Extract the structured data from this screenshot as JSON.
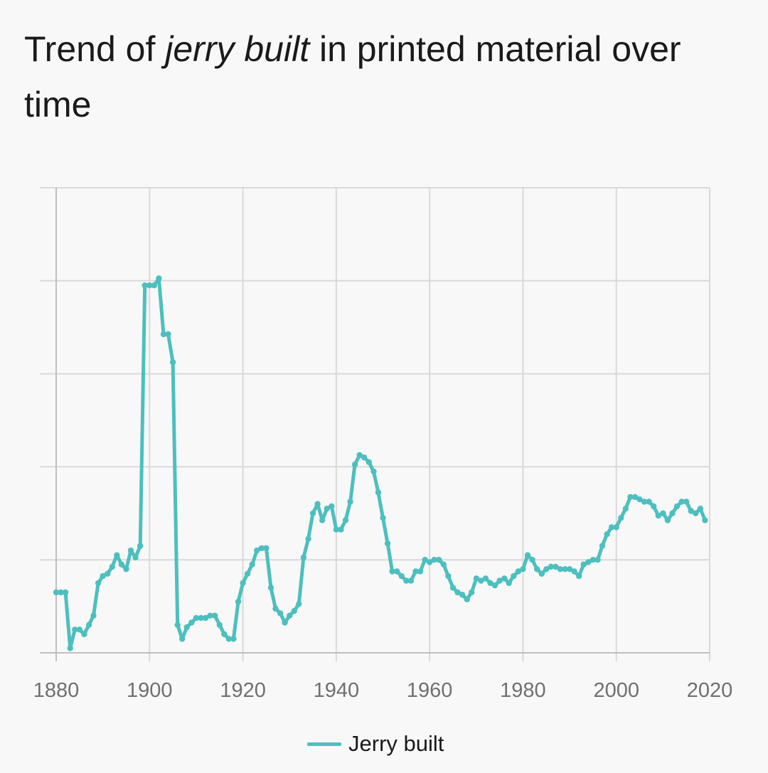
{
  "title": {
    "prefix": "Trend of ",
    "term": "jerry built",
    "suffix": " in printed material over time"
  },
  "colors": {
    "series": "#4dbfbf",
    "grid": "#d9d9d9",
    "axis": "#bfbfbf",
    "tick_text": "#707070",
    "background": "#f8f8f8"
  },
  "chart_data": {
    "type": "line",
    "title": "Trend of jerry built in printed material over time",
    "xlabel": "",
    "ylabel": "",
    "xlim": [
      1880,
      2020
    ],
    "ylim": [
      0,
      100
    ],
    "x_ticks": [
      "1880",
      "1900",
      "1920",
      "1940",
      "1960",
      "1980",
      "2000",
      "2020"
    ],
    "y_ticks_labeled": false,
    "grid": true,
    "legend": "bottom-center",
    "series": [
      {
        "name": "Jerry built",
        "x": [
          1880,
          1881,
          1882,
          1883,
          1884,
          1885,
          1886,
          1887,
          1888,
          1889,
          1890,
          1891,
          1892,
          1893,
          1894,
          1895,
          1896,
          1897,
          1898,
          1899,
          1900,
          1901,
          1902,
          1903,
          1904,
          1905,
          1906,
          1907,
          1908,
          1909,
          1910,
          1911,
          1912,
          1913,
          1914,
          1915,
          1916,
          1917,
          1918,
          1919,
          1920,
          1921,
          1922,
          1923,
          1924,
          1925,
          1926,
          1927,
          1928,
          1929,
          1930,
          1931,
          1932,
          1933,
          1934,
          1935,
          1936,
          1937,
          1938,
          1939,
          1940,
          1941,
          1942,
          1943,
          1944,
          1945,
          1946,
          1947,
          1948,
          1949,
          1950,
          1951,
          1952,
          1953,
          1954,
          1955,
          1956,
          1957,
          1958,
          1959,
          1960,
          1961,
          1962,
          1963,
          1964,
          1965,
          1966,
          1967,
          1968,
          1969,
          1970,
          1971,
          1972,
          1973,
          1974,
          1975,
          1976,
          1977,
          1978,
          1979,
          1980,
          1981,
          1982,
          1983,
          1984,
          1985,
          1986,
          1987,
          1988,
          1989,
          1990,
          1991,
          1992,
          1993,
          1994,
          1995,
          1996,
          1997,
          1998,
          1999,
          2000,
          2001,
          2002,
          2003,
          2004,
          2005,
          2006,
          2007,
          2008,
          2009,
          2010,
          2011,
          2012,
          2013,
          2014,
          2015,
          2016,
          2017,
          2018,
          2019
        ],
        "values": [
          13,
          13,
          13,
          1,
          5,
          5,
          4,
          6,
          8,
          15,
          16.5,
          17,
          18.5,
          21,
          19,
          18,
          22,
          20.5,
          23,
          79,
          79,
          79,
          80.5,
          68.5,
          68.5,
          62.5,
          6,
          3,
          5.5,
          6.5,
          7.5,
          7.5,
          7.5,
          8,
          8,
          6,
          4,
          3,
          3,
          11,
          15,
          17,
          19,
          22,
          22.5,
          22.5,
          14,
          9.5,
          8.5,
          6.5,
          8,
          9,
          10.5,
          20.5,
          24.5,
          30,
          32,
          28.5,
          31,
          31.5,
          26.5,
          26.5,
          28.5,
          32.5,
          40.5,
          42.5,
          42,
          41,
          39,
          34.5,
          29,
          23.5,
          17.5,
          17.5,
          16.5,
          15.5,
          15.5,
          17.5,
          17.5,
          20,
          19.5,
          20,
          20,
          19,
          16.5,
          14,
          13,
          12.5,
          11.5,
          13,
          16,
          15.5,
          16,
          15,
          14.5,
          15.5,
          16,
          15,
          16.5,
          17.5,
          18,
          21,
          20,
          18,
          17,
          18,
          18.5,
          18.5,
          18,
          18,
          18,
          17.5,
          16.5,
          19,
          19.5,
          20,
          20,
          23,
          25.5,
          27,
          27,
          29,
          31,
          33.5,
          33.5,
          33,
          32.5,
          32.5,
          31.5,
          29.5,
          30,
          28.5,
          30,
          31.5,
          32.5,
          32.5,
          30.5,
          30,
          31,
          28.5
        ]
      }
    ]
  }
}
